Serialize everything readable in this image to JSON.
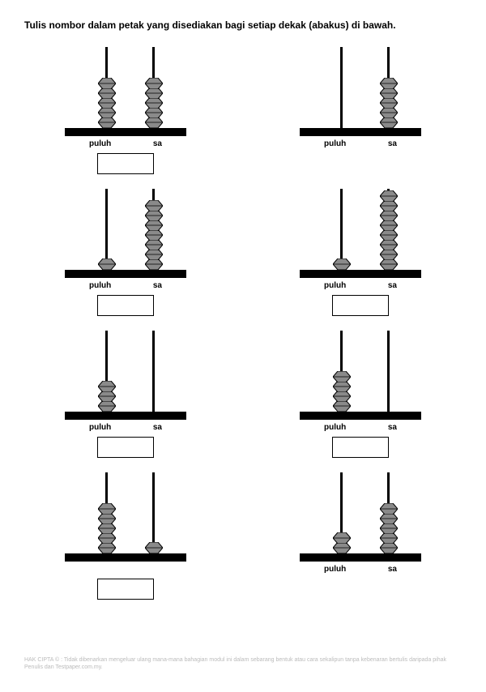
{
  "instruction": "Tulis nombor dalam petak yang disediakan bagi setiap dekak (abakus) di bawah.",
  "labels": {
    "tens": "puluh",
    "ones": "sa"
  },
  "bead": {
    "fill": "#8a8a8a",
    "stroke": "#000000",
    "width": 22,
    "height": 14
  },
  "items": [
    {
      "tens": 5,
      "ones": 5,
      "showLabels": true,
      "showBox": true
    },
    {
      "tens": 0,
      "ones": 5,
      "showLabels": true,
      "showBox": false
    },
    {
      "tens": 1,
      "ones": 7,
      "showLabels": true,
      "showBox": true
    },
    {
      "tens": 1,
      "ones": 8,
      "showLabels": true,
      "showBox": true
    },
    {
      "tens": 3,
      "ones": 0,
      "showLabels": true,
      "showBox": true
    },
    {
      "tens": 4,
      "ones": 0,
      "showLabels": true,
      "showBox": true
    },
    {
      "tens": 5,
      "ones": 1,
      "showLabels": false,
      "showBox": true
    },
    {
      "tens": 2,
      "ones": 5,
      "showLabels": true,
      "showBox": false
    }
  ],
  "copyright": "HAK CIPTA © : Tidak dibenarkan mengeluar ulang mana-mana bahagian modul ini dalam sebarang bentuk atau cara sekalipun tanpa kebenaran bertulis daripada pihak Penulis dan Testpaper.com.my."
}
